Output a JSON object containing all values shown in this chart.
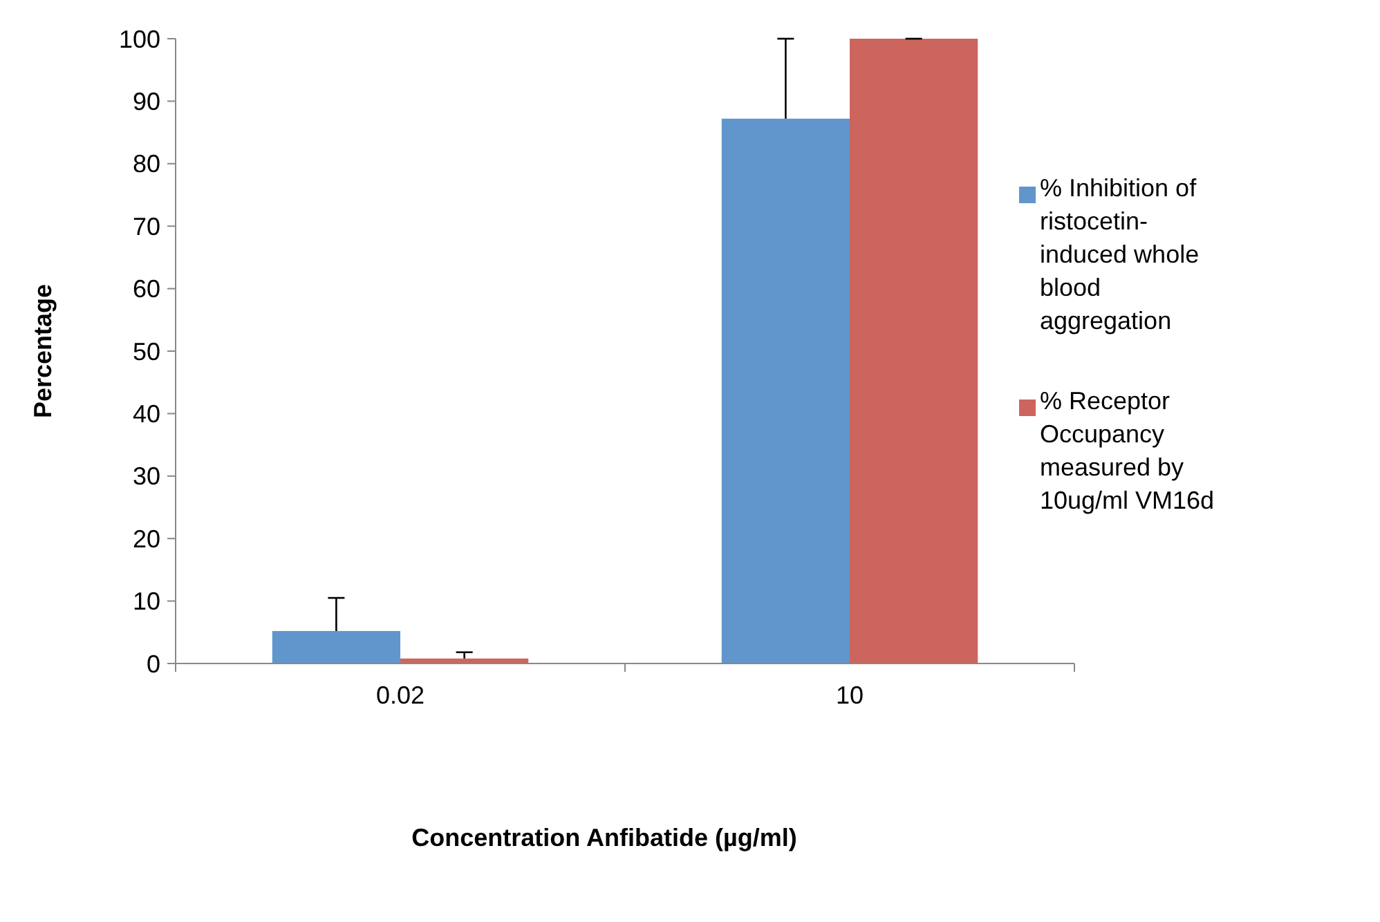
{
  "chart_data": {
    "type": "bar",
    "xlabel": "Concentration Anfibatide (µg/ml)",
    "ylabel": "Percentage",
    "categories": [
      "0.02",
      "10"
    ],
    "series": [
      {
        "name": "% Inhibition of ristocetin-induced whole blood aggregation",
        "color": "#6096cc",
        "values": [
          5.2,
          87.2
        ],
        "errors": [
          [
            5.2,
            10.5
          ],
          [
            87.2,
            100
          ]
        ]
      },
      {
        "name": "% Receptor Occupancy measured by 10ug/ml VM16d",
        "color": "#cd655f",
        "values": [
          0.8,
          100
        ],
        "errors": [
          [
            0.8,
            1.8
          ],
          [
            100,
            100
          ]
        ]
      }
    ],
    "ylim": [
      0,
      100
    ],
    "yticks": [
      0,
      10,
      20,
      30,
      40,
      50,
      60,
      70,
      80,
      90,
      100
    ],
    "grid": false,
    "legend": "right"
  }
}
